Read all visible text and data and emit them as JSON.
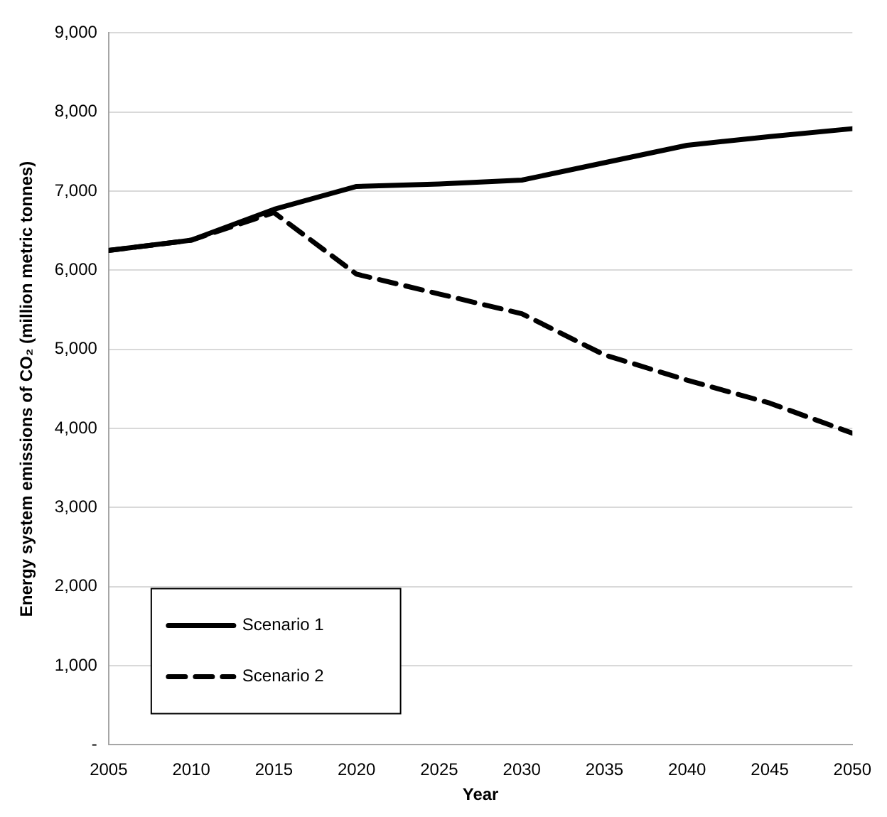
{
  "chart_data": {
    "type": "line",
    "xlabel": "Year",
    "ylabel": "Energy system emissions of CO₂ (million metric tonnes)",
    "x": [
      2005,
      2010,
      2015,
      2020,
      2025,
      2030,
      2035,
      2040,
      2045,
      2050
    ],
    "series": [
      {
        "name": "Scenario 1",
        "color": "#000000",
        "line_style": "solid",
        "values": [
          6250,
          6380,
          6770,
          7060,
          7090,
          7140,
          7360,
          7580,
          7690,
          7790
        ]
      },
      {
        "name": "Scenario 2",
        "color": "#000000",
        "line_style": "dashed",
        "values": [
          6250,
          6380,
          6730,
          5950,
          5700,
          5450,
          4930,
          4610,
          4320,
          3940
        ]
      }
    ],
    "xlim": [
      2005,
      2050
    ],
    "xticks": [
      2005,
      2010,
      2015,
      2020,
      2025,
      2030,
      2035,
      2040,
      2045,
      2050
    ],
    "ylim": [
      0,
      9000
    ],
    "yticks": [
      {
        "value": 0,
        "label": "-"
      },
      {
        "value": 1000,
        "label": "1,000"
      },
      {
        "value": 2000,
        "label": "2,000"
      },
      {
        "value": 3000,
        "label": "3,000"
      },
      {
        "value": 4000,
        "label": "4,000"
      },
      {
        "value": 5000,
        "label": "5,000"
      },
      {
        "value": 6000,
        "label": "6,000"
      },
      {
        "value": 7000,
        "label": "7,000"
      },
      {
        "value": 8000,
        "label": "8,000"
      },
      {
        "value": 9000,
        "label": "9,000"
      }
    ],
    "grid": "y",
    "legend": "bottom left",
    "marker": "none"
  }
}
